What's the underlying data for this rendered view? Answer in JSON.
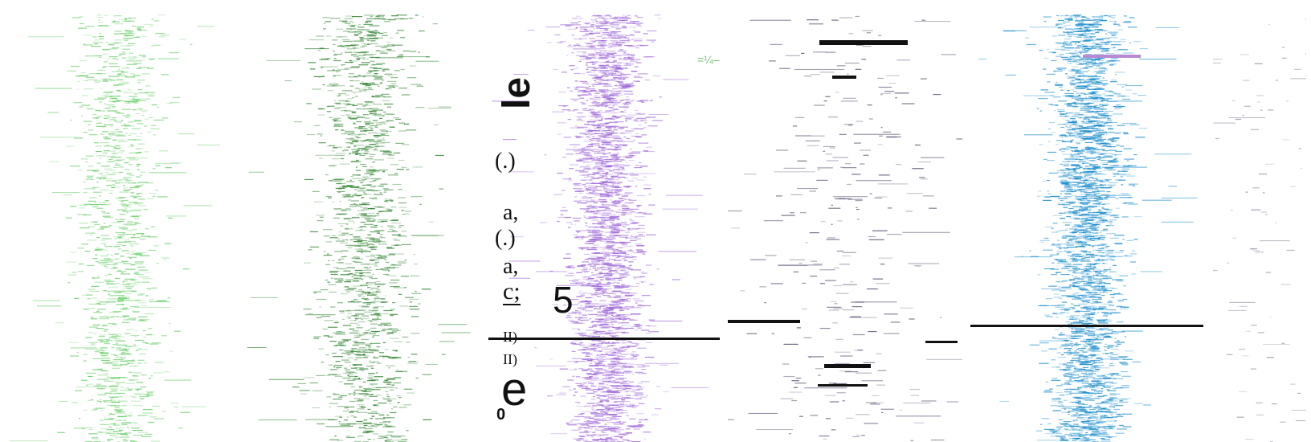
{
  "chart_data": {
    "type": "heatmap",
    "description_visible": false,
    "panels": [
      {
        "id": "panel-1",
        "color": "#5bc95b",
        "center_fraction": 0.48,
        "spread_fraction": 0.09,
        "density": "medium",
        "seed": 11
      },
      {
        "id": "panel-2",
        "color": "#1f7a1f",
        "center_fraction": 0.5,
        "spread_fraction": 0.1,
        "density": "high",
        "seed": 23
      },
      {
        "id": "panel-3",
        "color": "#9a61d6",
        "center_fraction": 0.5,
        "spread_fraction": 0.08,
        "density": "very-high",
        "seed": 37
      },
      {
        "id": "panel-4",
        "color": "#4b4b6a",
        "center_fraction": 0.5,
        "spread_fraction": 0.18,
        "density": "sparse",
        "seed": 51
      },
      {
        "id": "panel-5",
        "color": "#0d86c8",
        "center_fraction": 0.49,
        "spread_fraction": 0.08,
        "density": "very-high",
        "seed": 67
      },
      {
        "id": "panel-6",
        "color": "#8a8aa0",
        "center_fraction": 0.5,
        "spread_fraction": 0.25,
        "density": "minimal",
        "seed": 83
      }
    ],
    "annotations": {
      "vertical_glyphs": "le",
      "left_text_lines": [
        "(.)",
        "a,",
        "(.)",
        "a,"
      ],
      "c_mark": "c;",
      "number_mark": "5",
      "roman_marks": [
        "II)",
        "II)"
      ],
      "big_e": "e",
      "small_zero": "0",
      "fraction_mark": "=¼–"
    }
  }
}
